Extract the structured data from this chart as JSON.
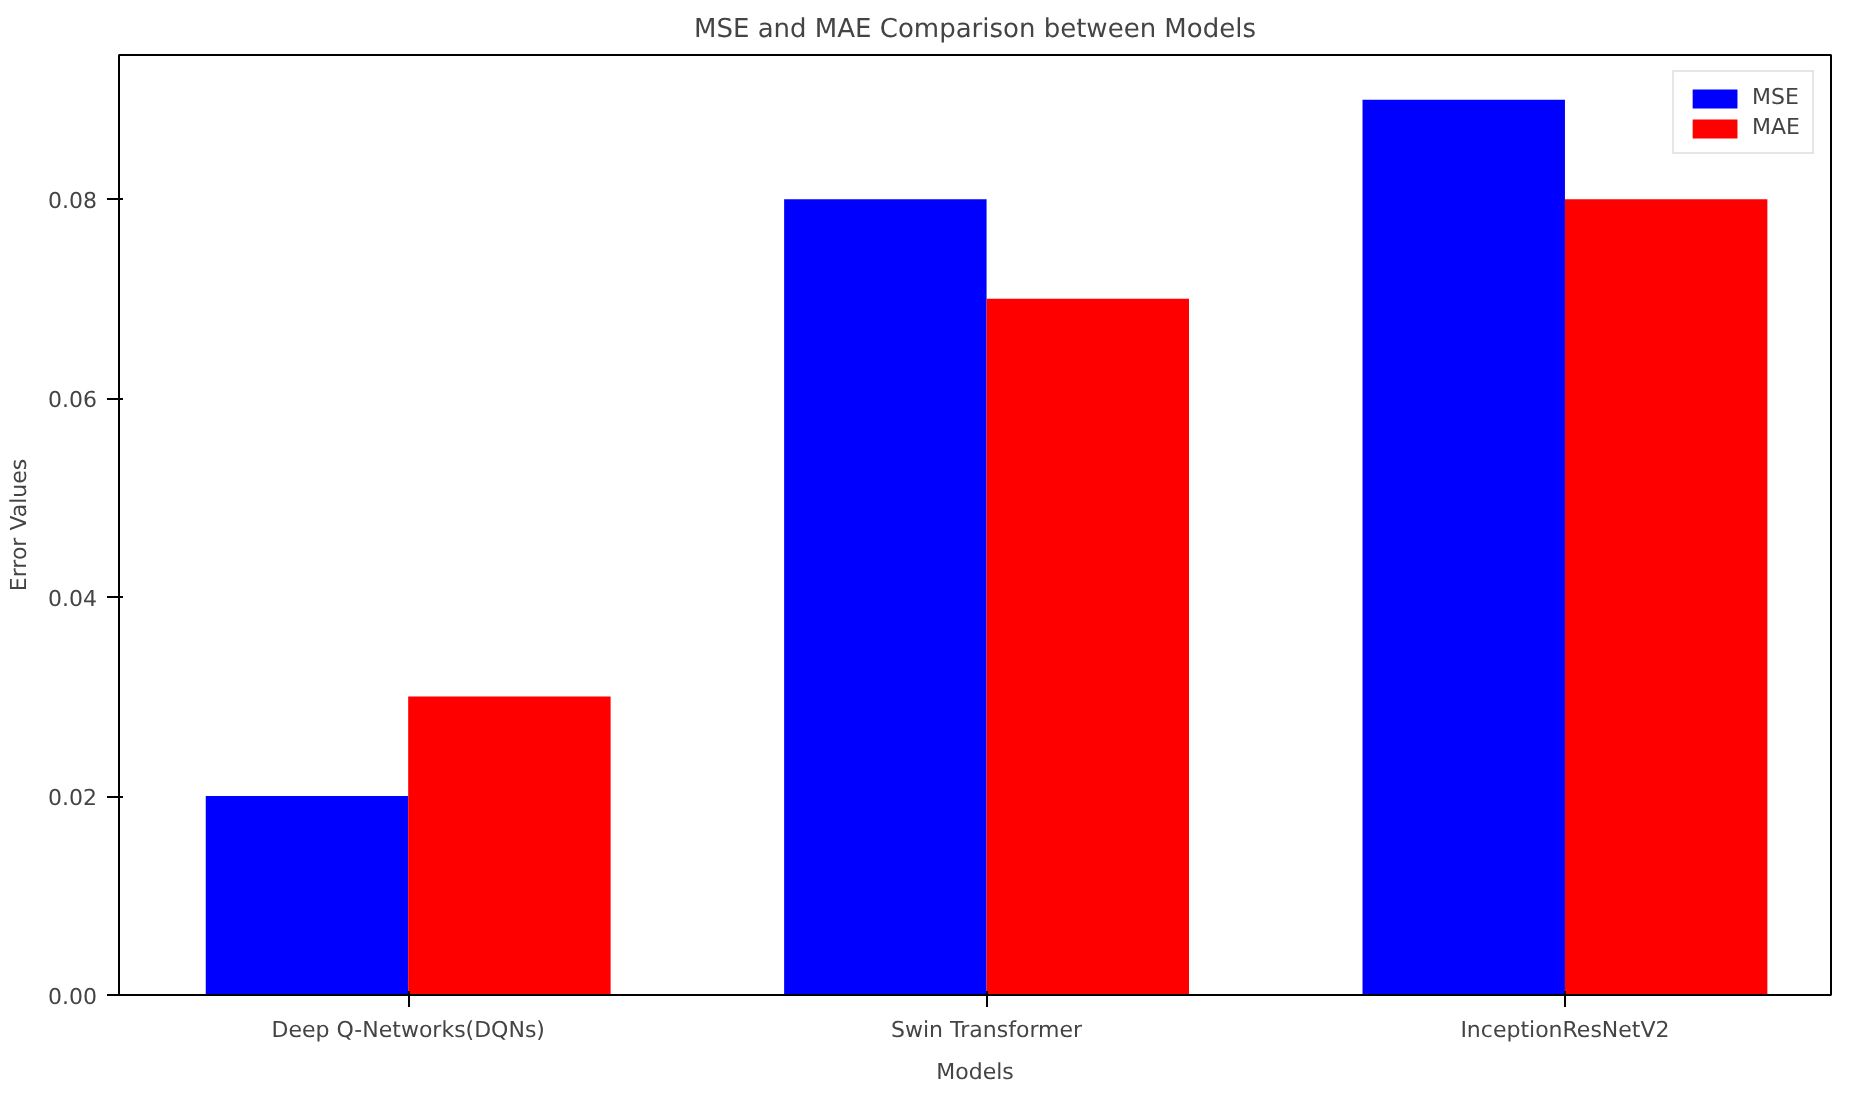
{
  "chart_data": {
    "type": "bar",
    "title": "MSE and MAE Comparison between Models",
    "xlabel": "Models",
    "ylabel": "Error Values",
    "categories": [
      "Deep Q-Networks(DQNs)",
      "Swin Transformer",
      "InceptionResNetV2"
    ],
    "series": [
      {
        "name": "MSE",
        "color": "#0000ff",
        "values": [
          0.02,
          0.08,
          0.09
        ]
      },
      {
        "name": "MAE",
        "color": "#ff0000",
        "values": [
          0.03,
          0.07,
          0.08
        ]
      }
    ],
    "ylim": [
      0,
      0.0945
    ],
    "yticks": [
      {
        "value": 0,
        "label": "0.00"
      },
      {
        "value": 0.02,
        "label": "0.02"
      },
      {
        "value": 0.04,
        "label": "0.04"
      },
      {
        "value": 0.06,
        "label": "0.06"
      },
      {
        "value": 0.08,
        "label": "0.08"
      }
    ],
    "grid": false,
    "legend": "top right"
  }
}
